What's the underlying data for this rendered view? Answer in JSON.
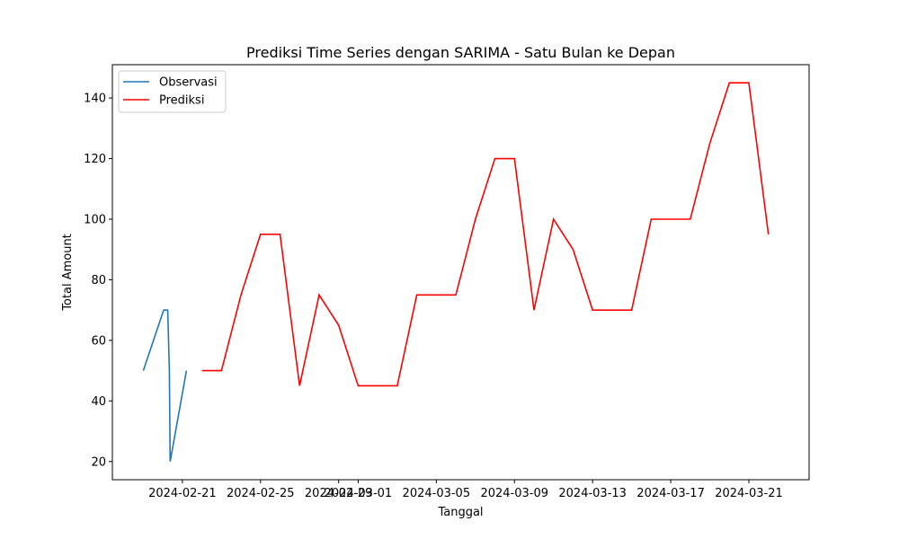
{
  "chart_data": {
    "type": "line",
    "title": "Prediksi Time Series dengan SARIMA - Satu Bulan ke Depan",
    "xlabel": "Tanggal",
    "ylabel": "Total Amount",
    "x_axis_kind": "date",
    "xlim": [
      "2024-02-17T10:00",
      "2024-03-24T02:00"
    ],
    "ylim": [
      14,
      151
    ],
    "x_ticks": [
      "2024-02-21",
      "2024-02-25",
      "2024-02-29",
      "2024-03-01",
      "2024-03-05",
      "2024-03-09",
      "2024-03-13",
      "2024-03-17",
      "2024-03-21"
    ],
    "y_ticks": [
      20,
      40,
      60,
      80,
      100,
      120,
      140
    ],
    "grid": false,
    "legend_position": "top-left",
    "series": [
      {
        "name": "Observasi",
        "color": "#1f77b4",
        "points": [
          [
            "2024-02-19T00:00",
            50
          ],
          [
            "2024-02-20T01:00",
            70
          ],
          [
            "2024-02-20T06:00",
            70
          ],
          [
            "2024-02-20T08:00",
            50
          ],
          [
            "2024-02-20T09:00",
            20
          ],
          [
            "2024-02-21T05:00",
            50
          ]
        ]
      },
      {
        "name": "Prediksi",
        "color": "#ff0000",
        "points": [
          [
            "2024-02-22T00:00",
            50
          ],
          [
            "2024-02-23T00:00",
            50
          ],
          [
            "2024-02-24T00:00",
            75
          ],
          [
            "2024-02-25T00:00",
            95
          ],
          [
            "2024-02-26T00:00",
            95
          ],
          [
            "2024-02-27T00:00",
            45
          ],
          [
            "2024-02-28T00:00",
            75
          ],
          [
            "2024-02-29T00:00",
            65
          ],
          [
            "2024-03-01T00:00",
            45
          ],
          [
            "2024-03-02T00:00",
            45
          ],
          [
            "2024-03-03T00:00",
            45
          ],
          [
            "2024-03-04T00:00",
            75
          ],
          [
            "2024-03-05T00:00",
            75
          ],
          [
            "2024-03-06T00:00",
            75
          ],
          [
            "2024-03-07T00:00",
            100
          ],
          [
            "2024-03-08T00:00",
            120
          ],
          [
            "2024-03-09T00:00",
            120
          ],
          [
            "2024-03-10T00:00",
            70
          ],
          [
            "2024-03-11T00:00",
            100
          ],
          [
            "2024-03-12T00:00",
            90
          ],
          [
            "2024-03-13T00:00",
            70
          ],
          [
            "2024-03-14T00:00",
            70
          ],
          [
            "2024-03-15T00:00",
            70
          ],
          [
            "2024-03-16T00:00",
            100
          ],
          [
            "2024-03-17T00:00",
            100
          ],
          [
            "2024-03-18T00:00",
            100
          ],
          [
            "2024-03-19T00:00",
            125
          ],
          [
            "2024-03-20T00:00",
            145
          ],
          [
            "2024-03-21T00:00",
            145
          ],
          [
            "2024-03-22T00:00",
            95
          ]
        ]
      }
    ]
  }
}
